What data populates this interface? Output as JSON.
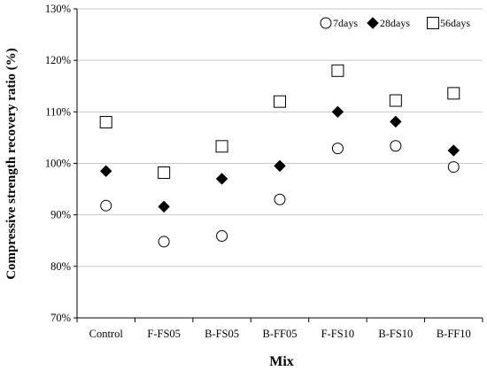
{
  "chart_data": {
    "type": "scatter",
    "title": "",
    "xlabel": "Mix",
    "ylabel": "Compressive strength recovery ratio (%)",
    "categories": [
      "Control",
      "F-FS05",
      "B-FS05",
      "B-FF05",
      "F-FS10",
      "B-FS10",
      "B-FF10"
    ],
    "ylim": [
      70,
      130
    ],
    "yticks": [
      70,
      80,
      90,
      100,
      110,
      120,
      130
    ],
    "ytick_labels": [
      "70%",
      "80%",
      "90%",
      "100%",
      "110%",
      "120%",
      "130%"
    ],
    "grid": true,
    "legend_position": "top-right",
    "series": [
      {
        "name": "7days",
        "marker": "circle-open",
        "values": [
          91.8,
          84.8,
          85.9,
          93.0,
          102.9,
          103.4,
          99.3
        ]
      },
      {
        "name": "28days",
        "marker": "diamond-filled",
        "values": [
          98.5,
          91.6,
          97.0,
          99.5,
          110.0,
          108.1,
          102.5
        ]
      },
      {
        "name": "56days",
        "marker": "square-open",
        "values": [
          108.0,
          98.2,
          103.3,
          112.0,
          118.0,
          112.2,
          113.6
        ]
      }
    ]
  }
}
